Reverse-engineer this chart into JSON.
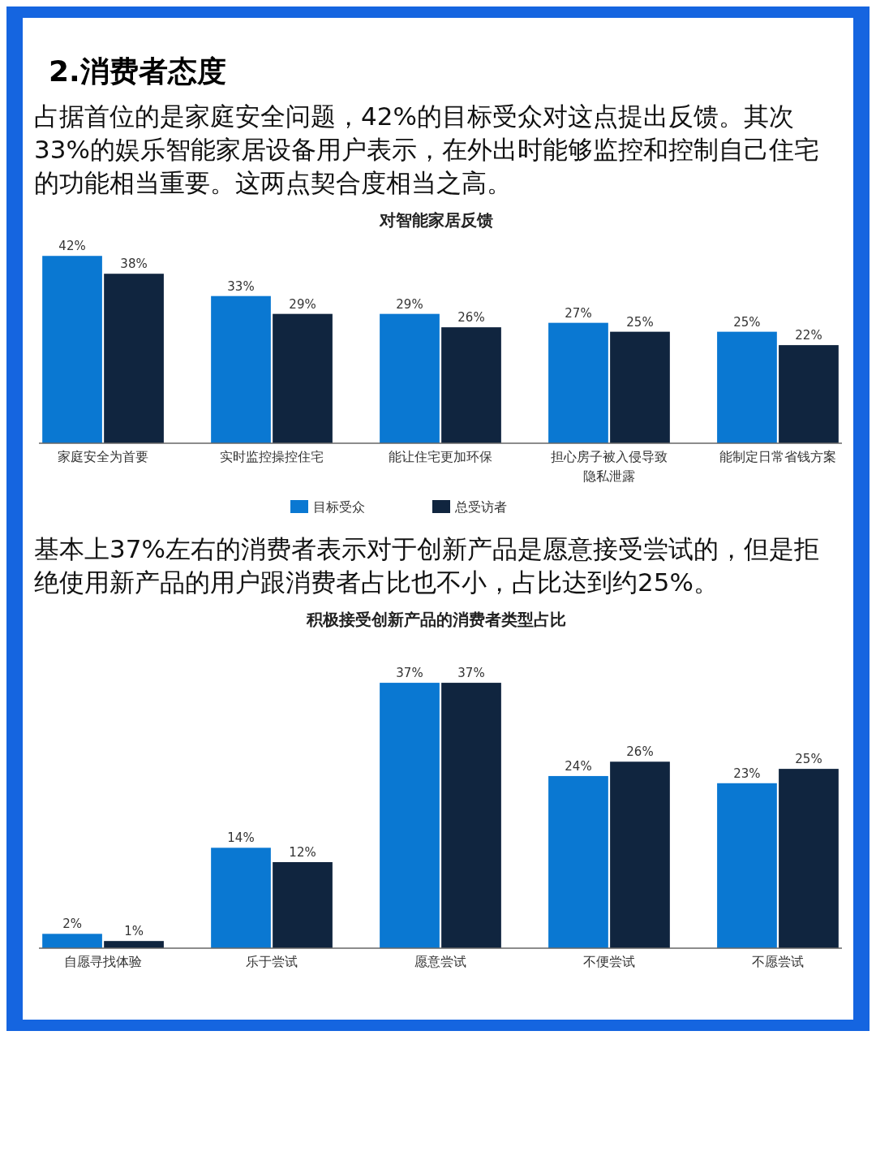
{
  "chart_data": [
    {
      "type": "other",
      "title": "2.消费者态度",
      "annotations": [
        "占据首位的是家庭安全问题，42%的目标受众对这点提出反馈。其次33%的娱乐智能家居设备用户表示，在外出时能够监控和控制自己住宅的功能相当重要。这两点契合度相当之高。"
      ]
    },
    {
      "type": "bar",
      "title": "对智能家居反馈",
      "categories": [
        "家庭安全为首要",
        "实时监控操控住宅",
        "能让住宅更加环保",
        "担心房子被入侵导致隐私泄露",
        "能制定日常省钱方案"
      ],
      "series": [
        {
          "name": "目标受众",
          "color": "#0a78d2",
          "values": [
            42,
            33,
            29,
            27,
            25
          ],
          "value_labels": [
            "42%",
            "33%",
            "29%",
            "27%",
            "25%"
          ]
        },
        {
          "name": "总受访者",
          "color": "#10253f",
          "values": [
            38,
            29,
            26,
            25,
            22
          ],
          "value_labels": [
            "38%",
            "29%",
            "26%",
            "25%",
            "22%"
          ]
        }
      ],
      "legend": "bottom"
    },
    {
      "type": "other",
      "annotations": [
        "基本上37%左右的消费者表示对于创新产品是愿意接受尝试的，但是拒绝使用新产品的用户跟消费者占比也不小，占比达到约25%。"
      ]
    },
    {
      "type": "bar",
      "title": "积极接受创新产品的消费者类型占比",
      "categories": [
        "自愿寻找体验",
        "乐于尝试",
        "愿意尝试",
        "不便尝试",
        "不愿尝试"
      ],
      "series": [
        {
          "color": "#0a78d2",
          "values": [
            2,
            14,
            37,
            24,
            23
          ],
          "value_labels": [
            "2%",
            "14%",
            "37%",
            "24%",
            "23%"
          ]
        },
        {
          "color": "#10253f",
          "values": [
            1,
            12,
            37,
            26,
            25
          ],
          "value_labels": [
            "1%",
            "12%",
            "37%",
            "26%",
            "25%"
          ]
        }
      ]
    }
  ]
}
